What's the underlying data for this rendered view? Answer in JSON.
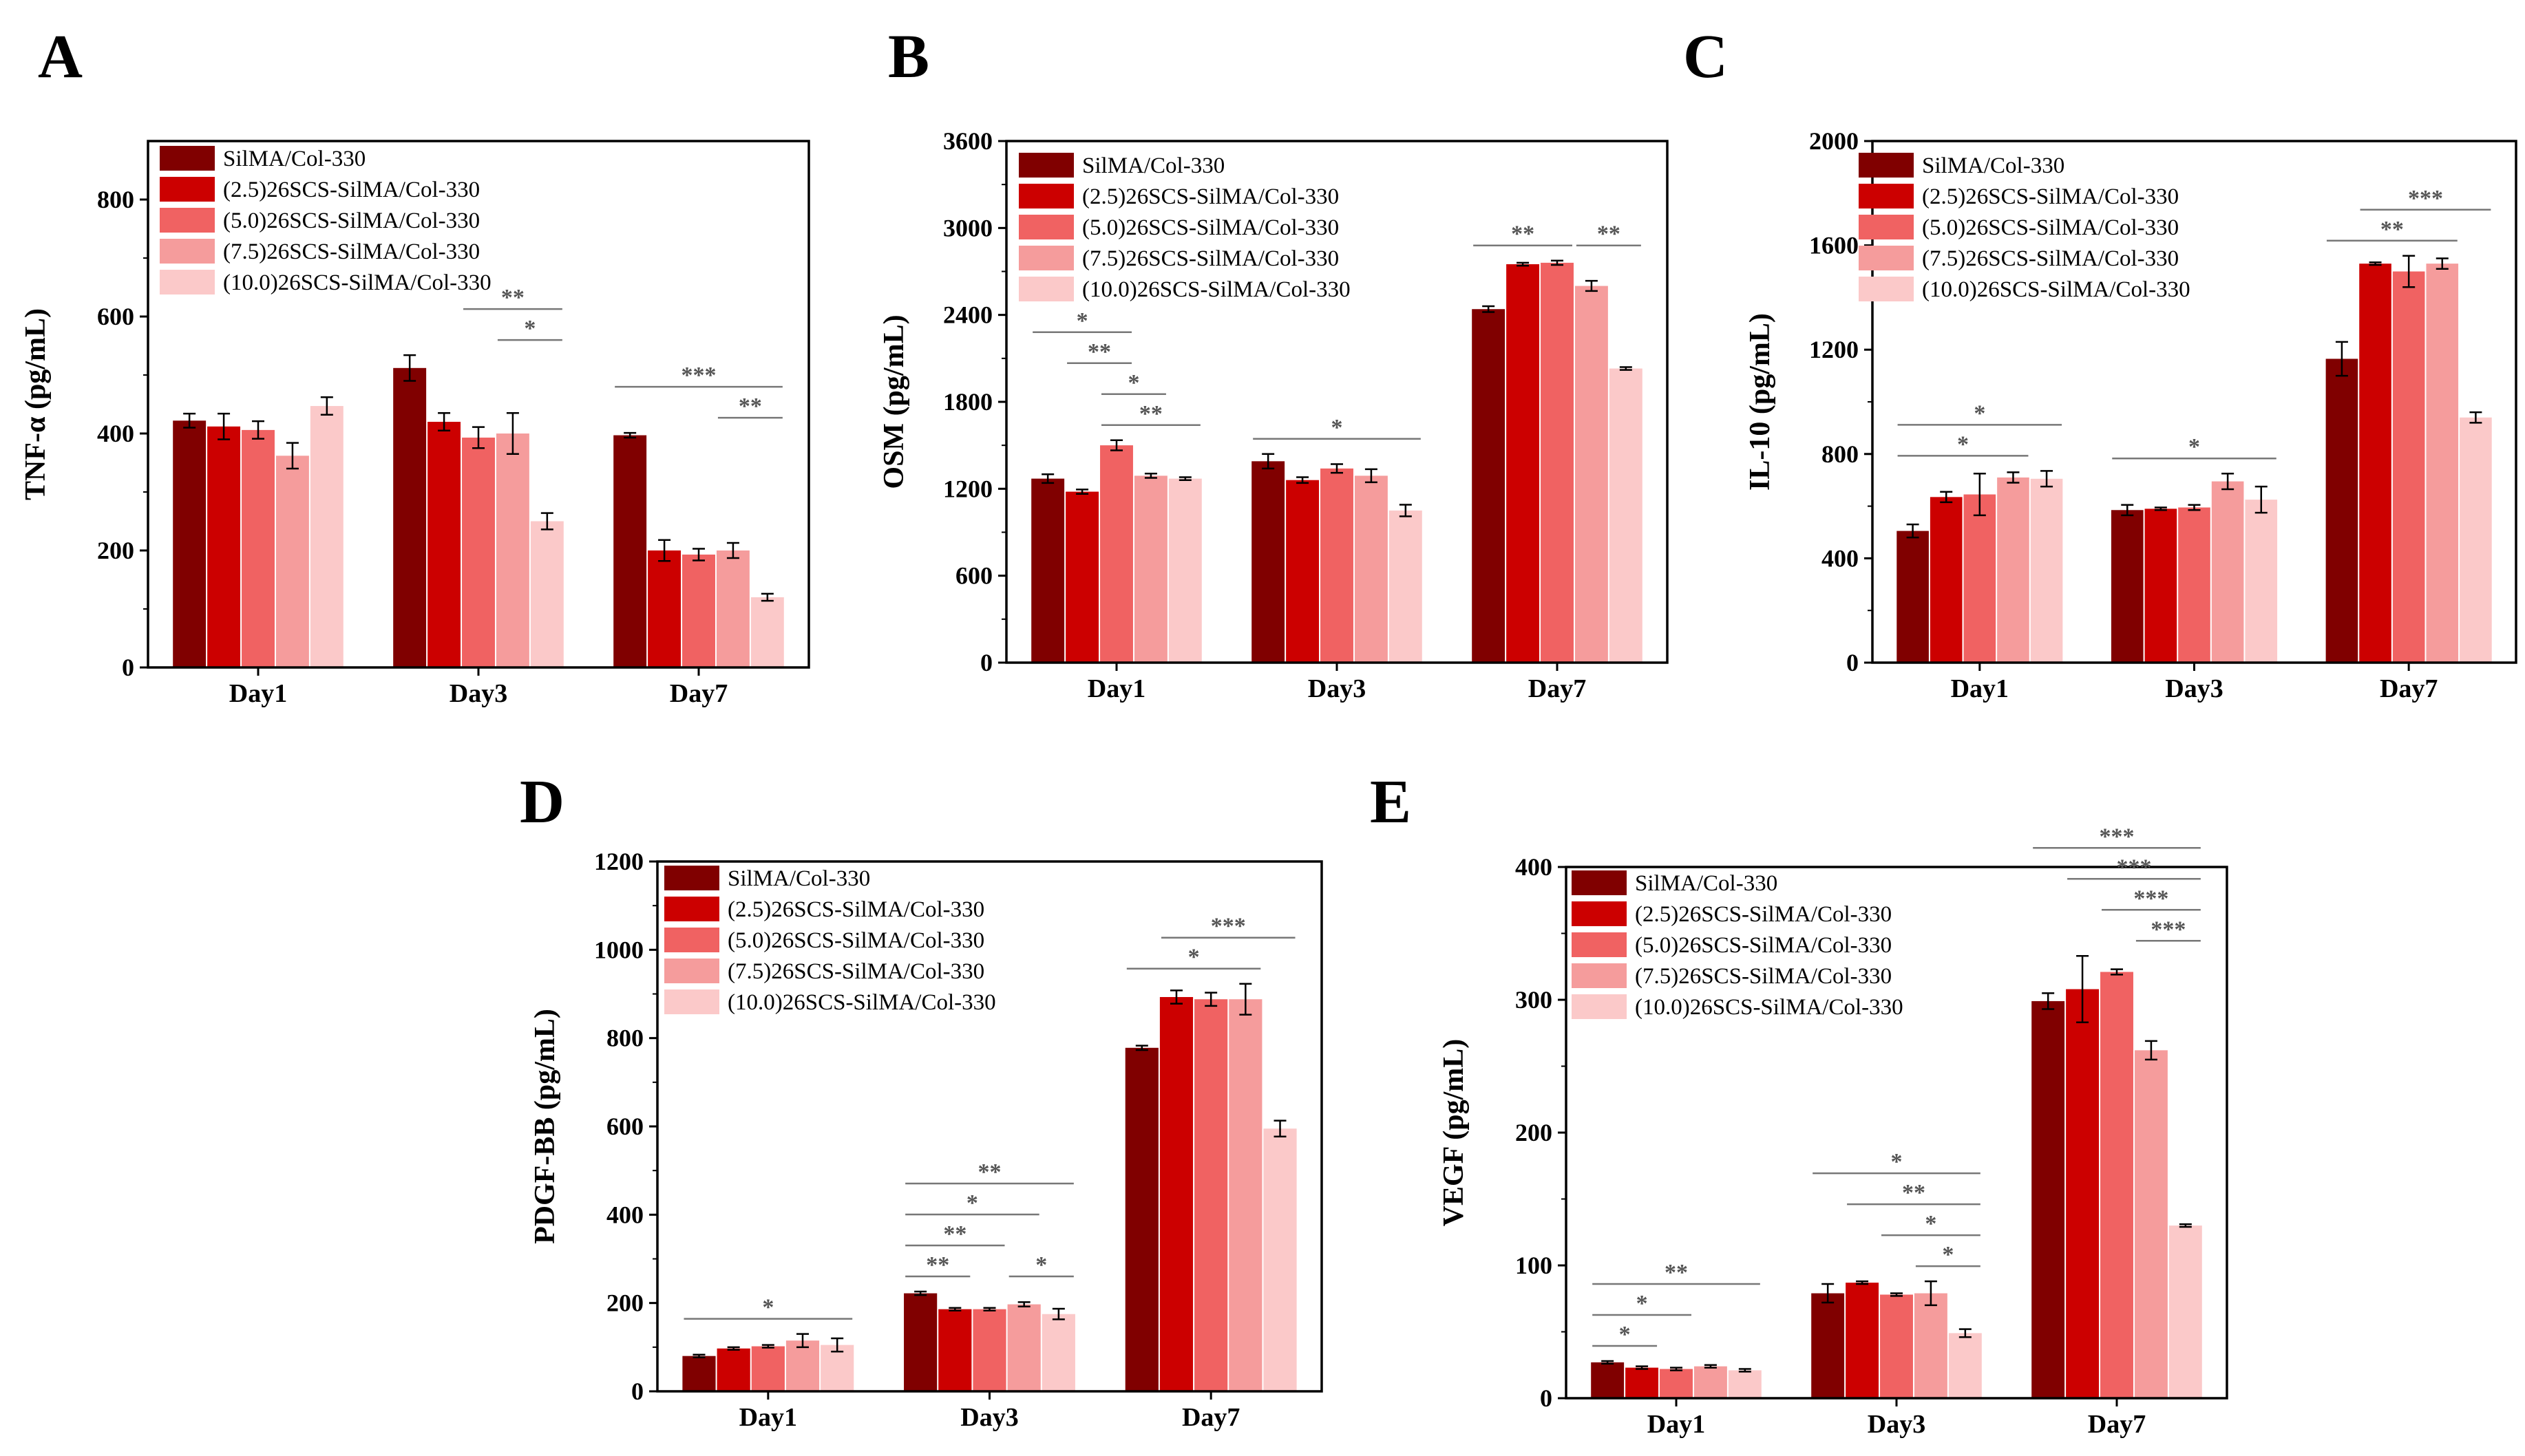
{
  "series_names": [
    "SilMA/Col-330",
    "(2.5)26SCS-SilMA/Col-330",
    "(5.0)26SCS-SilMA/Col-330",
    "(7.5)26SCS-SilMA/Col-330",
    "(10.0)26SCS-SilMA/Col-330"
  ],
  "series_colors": [
    "#800000",
    "#cc0000",
    "#f06262",
    "#f59c9c",
    "#fbc9c9"
  ],
  "chart_data": [
    {
      "id": "A",
      "letter": "A",
      "type": "bar",
      "ylabel": "TNF-α (pg/mL)",
      "ylim": [
        0,
        900
      ],
      "yticks": [
        0,
        200,
        400,
        600,
        800
      ],
      "categories": [
        "Day1",
        "Day3",
        "Day7"
      ],
      "series": [
        {
          "name": "SilMA/Col-330",
          "values": [
            422,
            512,
            397
          ],
          "errors": [
            12,
            22,
            4
          ]
        },
        {
          "name": "(2.5)26SCS-SilMA/Col-330",
          "values": [
            412,
            420,
            200
          ],
          "errors": [
            22,
            15,
            18
          ]
        },
        {
          "name": "(5.0)26SCS-SilMA/Col-330",
          "values": [
            406,
            393,
            193
          ],
          "errors": [
            15,
            18,
            10
          ]
        },
        {
          "name": "(7.5)26SCS-SilMA/Col-330",
          "values": [
            362,
            400,
            200
          ],
          "errors": [
            22,
            35,
            13
          ]
        },
        {
          "name": "(10.0)26SCS-SilMA/Col-330",
          "values": [
            447,
            250,
            120
          ],
          "errors": [
            15,
            14,
            6
          ]
        }
      ],
      "significance": [
        {
          "group": 1,
          "from": 2,
          "to": 4,
          "label": "**",
          "level": 0
        },
        {
          "group": 1,
          "from": 3,
          "to": 4,
          "label": "*",
          "level": 1
        },
        {
          "group": 2,
          "from": 0,
          "to": 4,
          "label": "***",
          "level": 0
        },
        {
          "group": 2,
          "from": 3,
          "to": 4,
          "label": "**",
          "level": 1
        }
      ]
    },
    {
      "id": "B",
      "letter": "B",
      "type": "bar",
      "ylabel": "OSM (pg/mL)",
      "ylim": [
        0,
        3600
      ],
      "yticks": [
        0,
        600,
        1200,
        1800,
        2400,
        3000,
        3600
      ],
      "categories": [
        "Day1",
        "Day3",
        "Day7"
      ],
      "series": [
        {
          "name": "SilMA/Col-330",
          "values": [
            1270,
            1390,
            2440
          ],
          "errors": [
            30,
            50,
            20
          ]
        },
        {
          "name": "(2.5)26SCS-SilMA/Col-330",
          "values": [
            1180,
            1260,
            2750
          ],
          "errors": [
            15,
            20,
            10
          ]
        },
        {
          "name": "(5.0)26SCS-SilMA/Col-330",
          "values": [
            1500,
            1340,
            2760
          ],
          "errors": [
            35,
            30,
            15
          ]
        },
        {
          "name": "(7.5)26SCS-SilMA/Col-330",
          "values": [
            1290,
            1290,
            2600
          ],
          "errors": [
            15,
            45,
            35
          ]
        },
        {
          "name": "(10.0)26SCS-SilMA/Col-330",
          "values": [
            1270,
            1050,
            2030
          ],
          "errors": [
            10,
            40,
            10
          ]
        }
      ],
      "significance": [
        {
          "group": 0,
          "from": 0,
          "to": 2,
          "label": "*",
          "level": 0
        },
        {
          "group": 0,
          "from": 1,
          "to": 2,
          "label": "**",
          "level": 1
        },
        {
          "group": 0,
          "from": 2,
          "to": 3,
          "label": "*",
          "level": 2
        },
        {
          "group": 0,
          "from": 2,
          "to": 4,
          "label": "**",
          "level": 3
        },
        {
          "group": 1,
          "from": 0,
          "to": 4,
          "label": "*",
          "level": 0
        },
        {
          "group": 2,
          "from": 0,
          "to": 2,
          "label": "**",
          "level": 0
        },
        {
          "group": 2,
          "from": 3,
          "to": 4,
          "label": "**",
          "level": 0
        }
      ]
    },
    {
      "id": "C",
      "letter": "C",
      "type": "bar",
      "ylabel": "IL-10 (pg/mL)",
      "ylim": [
        0,
        2000
      ],
      "yticks": [
        0,
        400,
        800,
        1200,
        1600,
        2000
      ],
      "categories": [
        "Day1",
        "Day3",
        "Day7"
      ],
      "series": [
        {
          "name": "SilMA/Col-330",
          "values": [
            505,
            585,
            1165
          ],
          "errors": [
            25,
            20,
            65
          ]
        },
        {
          "name": "(2.5)26SCS-SilMA/Col-330",
          "values": [
            635,
            590,
            1530
          ],
          "errors": [
            20,
            5,
            5
          ]
        },
        {
          "name": "(5.0)26SCS-SilMA/Col-330",
          "values": [
            645,
            595,
            1500
          ],
          "errors": [
            80,
            10,
            60
          ]
        },
        {
          "name": "(7.5)26SCS-SilMA/Col-330",
          "values": [
            710,
            695,
            1530
          ],
          "errors": [
            20,
            30,
            20
          ]
        },
        {
          "name": "(10.0)26SCS-SilMA/Col-330",
          "values": [
            705,
            625,
            940
          ],
          "errors": [
            30,
            50,
            20
          ]
        }
      ],
      "significance": [
        {
          "group": 0,
          "from": 0,
          "to": 4,
          "label": "*",
          "level": 0
        },
        {
          "group": 0,
          "from": 0,
          "to": 3,
          "label": "*",
          "level": 1
        },
        {
          "group": 1,
          "from": 0,
          "to": 4,
          "label": "*",
          "level": 0
        },
        {
          "group": 2,
          "from": 1,
          "to": 4,
          "label": "***",
          "level": 0
        },
        {
          "group": 2,
          "from": 0,
          "to": 3,
          "label": "**",
          "level": 1
        }
      ]
    },
    {
      "id": "D",
      "letter": "D",
      "type": "bar",
      "ylabel": "PDGF-BB (pg/mL)",
      "ylim": [
        0,
        1200
      ],
      "yticks": [
        0,
        200,
        400,
        600,
        800,
        1000,
        1200
      ],
      "categories": [
        "Day1",
        "Day3",
        "Day7"
      ],
      "series": [
        {
          "name": "SilMA/Col-330",
          "values": [
            80,
            222,
            778
          ],
          "errors": [
            3,
            4,
            5
          ]
        },
        {
          "name": "(2.5)26SCS-SilMA/Col-330",
          "values": [
            97,
            186,
            893
          ],
          "errors": [
            3,
            3,
            15
          ]
        },
        {
          "name": "(5.0)26SCS-SilMA/Col-330",
          "values": [
            102,
            186,
            888
          ],
          "errors": [
            3,
            3,
            15
          ]
        },
        {
          "name": "(7.5)26SCS-SilMA/Col-330",
          "values": [
            115,
            197,
            888
          ],
          "errors": [
            15,
            5,
            35
          ]
        },
        {
          "name": "(10.0)26SCS-SilMA/Col-330",
          "values": [
            105,
            175,
            595
          ],
          "errors": [
            15,
            12,
            18
          ]
        }
      ],
      "significance": [
        {
          "group": 0,
          "from": 0,
          "to": 4,
          "label": "*",
          "level": 0
        },
        {
          "group": 1,
          "from": 0,
          "to": 4,
          "label": "**",
          "level": 0
        },
        {
          "group": 1,
          "from": 0,
          "to": 3,
          "label": "*",
          "level": 1
        },
        {
          "group": 1,
          "from": 0,
          "to": 2,
          "label": "**",
          "level": 2
        },
        {
          "group": 1,
          "from": 0,
          "to": 1,
          "label": "**",
          "level": 3
        },
        {
          "group": 1,
          "from": 3,
          "to": 4,
          "label": "*",
          "level": 3
        },
        {
          "group": 2,
          "from": 1,
          "to": 4,
          "label": "***",
          "level": 0
        },
        {
          "group": 2,
          "from": 0,
          "to": 3,
          "label": "*",
          "level": 1
        }
      ]
    },
    {
      "id": "E",
      "letter": "E",
      "type": "bar",
      "ylabel": "VEGF (pg/mL)",
      "ylim": [
        0,
        400
      ],
      "yticks": [
        0,
        100,
        200,
        300,
        400
      ],
      "categories": [
        "Day1",
        "Day3",
        "Day7"
      ],
      "series": [
        {
          "name": "SilMA/Col-330",
          "values": [
            27,
            79,
            299
          ],
          "errors": [
            1,
            7,
            6
          ]
        },
        {
          "name": "(2.5)26SCS-SilMA/Col-330",
          "values": [
            23,
            87,
            308
          ],
          "errors": [
            1,
            1,
            25
          ]
        },
        {
          "name": "(5.0)26SCS-SilMA/Col-330",
          "values": [
            22,
            78,
            321
          ],
          "errors": [
            1,
            1,
            2
          ]
        },
        {
          "name": "(7.5)26SCS-SilMA/Col-330",
          "values": [
            24,
            79,
            262
          ],
          "errors": [
            1,
            9,
            7
          ]
        },
        {
          "name": "(10.0)26SCS-SilMA/Col-330",
          "values": [
            21,
            49,
            130
          ],
          "errors": [
            1,
            3,
            1
          ]
        }
      ],
      "significance": [
        {
          "group": 0,
          "from": 0,
          "to": 4,
          "label": "**",
          "level": 0
        },
        {
          "group": 0,
          "from": 0,
          "to": 2,
          "label": "*",
          "level": 1
        },
        {
          "group": 0,
          "from": 0,
          "to": 1,
          "label": "*",
          "level": 2
        },
        {
          "group": 1,
          "from": 0,
          "to": 4,
          "label": "*",
          "level": 0
        },
        {
          "group": 1,
          "from": 1,
          "to": 4,
          "label": "**",
          "level": 1
        },
        {
          "group": 1,
          "from": 2,
          "to": 4,
          "label": "*",
          "level": 2
        },
        {
          "group": 1,
          "from": 3,
          "to": 4,
          "label": "*",
          "level": 3
        },
        {
          "group": 2,
          "from": 0,
          "to": 4,
          "label": "***",
          "level": 0
        },
        {
          "group": 2,
          "from": 1,
          "to": 4,
          "label": "***",
          "level": 1
        },
        {
          "group": 2,
          "from": 2,
          "to": 4,
          "label": "***",
          "level": 2
        },
        {
          "group": 2,
          "from": 3,
          "to": 4,
          "label": "***",
          "level": 3
        }
      ]
    }
  ]
}
